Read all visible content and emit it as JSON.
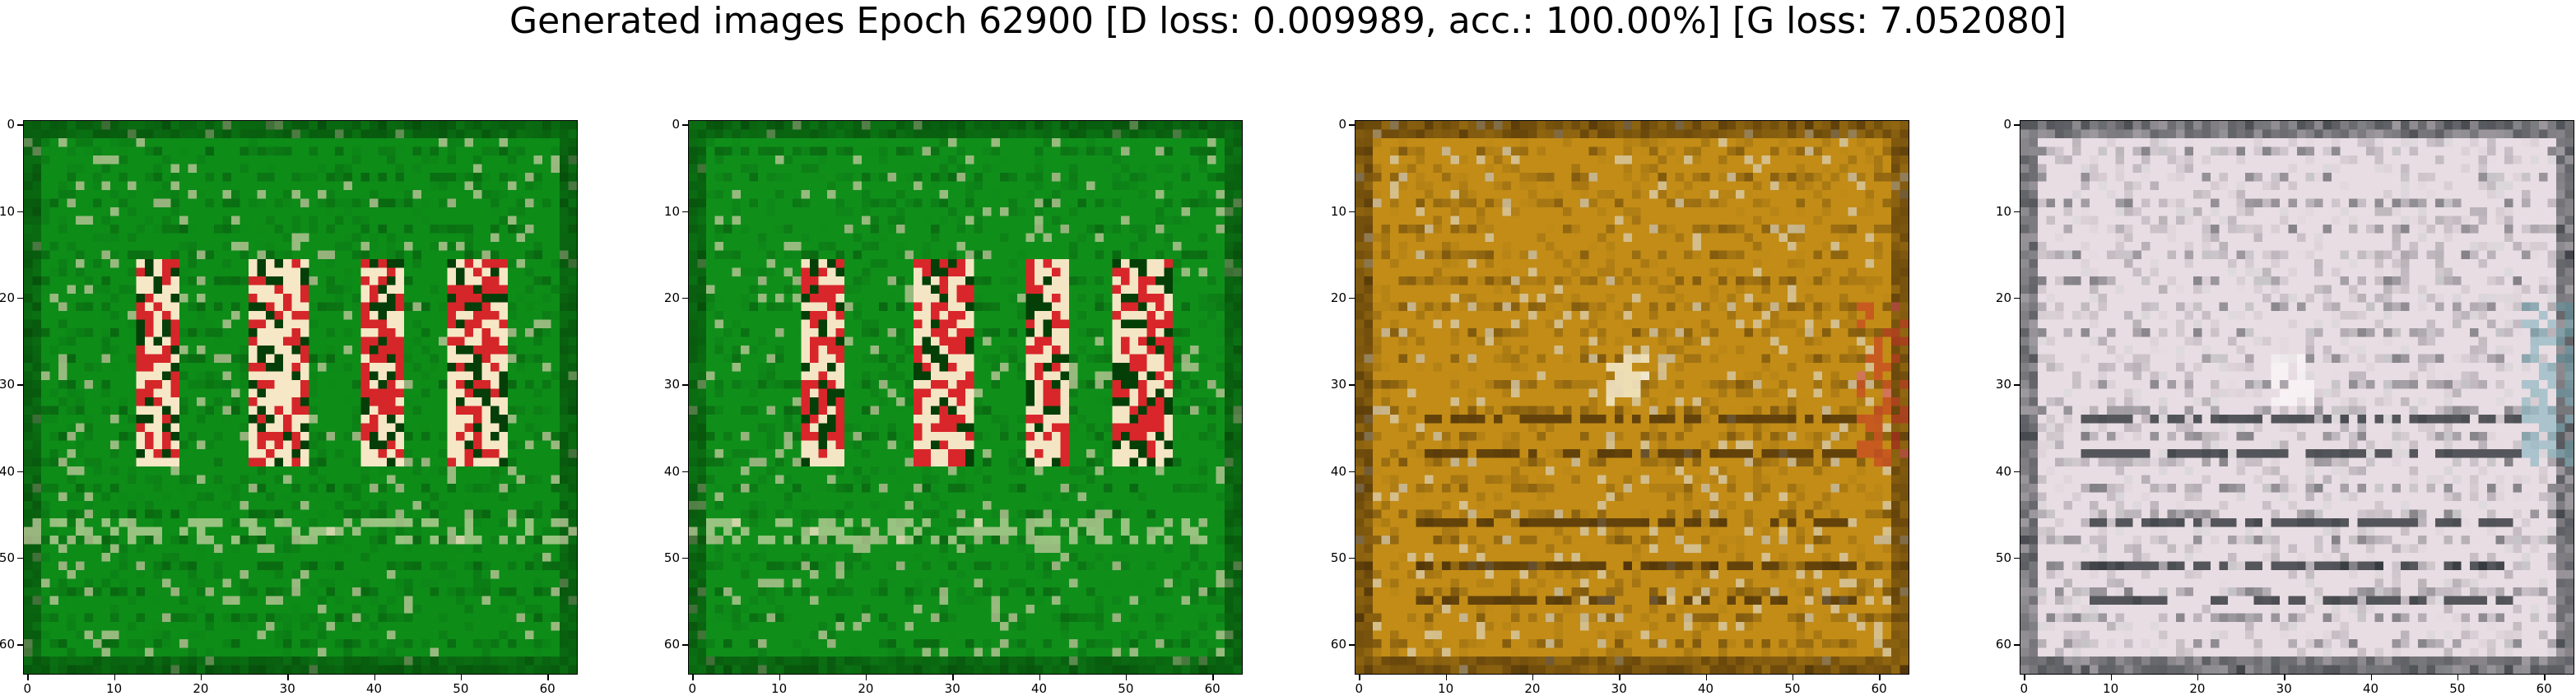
{
  "figure": {
    "title": "Generated images Epoch 62900 [D loss: 0.009989, acc.: 100.00%] [G loss: 7.052080]"
  },
  "axis_ticks": [
    "0",
    "10",
    "20",
    "30",
    "40",
    "50",
    "60"
  ],
  "axis_tick_values": [
    0,
    10,
    20,
    30,
    40,
    50,
    60
  ],
  "image_size": 64,
  "panels": [
    {
      "name": "generated-image-1",
      "palette": "green",
      "base": "#0d8c18",
      "dark": "#053e08",
      "light": "#f6e7c6",
      "accent": "#d5262a",
      "figures": true
    },
    {
      "name": "generated-image-2",
      "palette": "green",
      "base": "#0f8f1a",
      "dark": "#053f08",
      "light": "#f4e6c4",
      "accent": "#d8262b",
      "figures": true
    },
    {
      "name": "generated-image-3",
      "palette": "ochre",
      "base": "#c28c16",
      "dark": "#3b2406",
      "light": "#f8f2dc",
      "accent": "#cc2a28",
      "figures": false
    },
    {
      "name": "generated-image-4",
      "palette": "grey",
      "base": "#e8dde3",
      "dark": "#141c20",
      "light": "#fbf6f8",
      "accent": "#6ea9b5",
      "figures": false
    }
  ]
}
